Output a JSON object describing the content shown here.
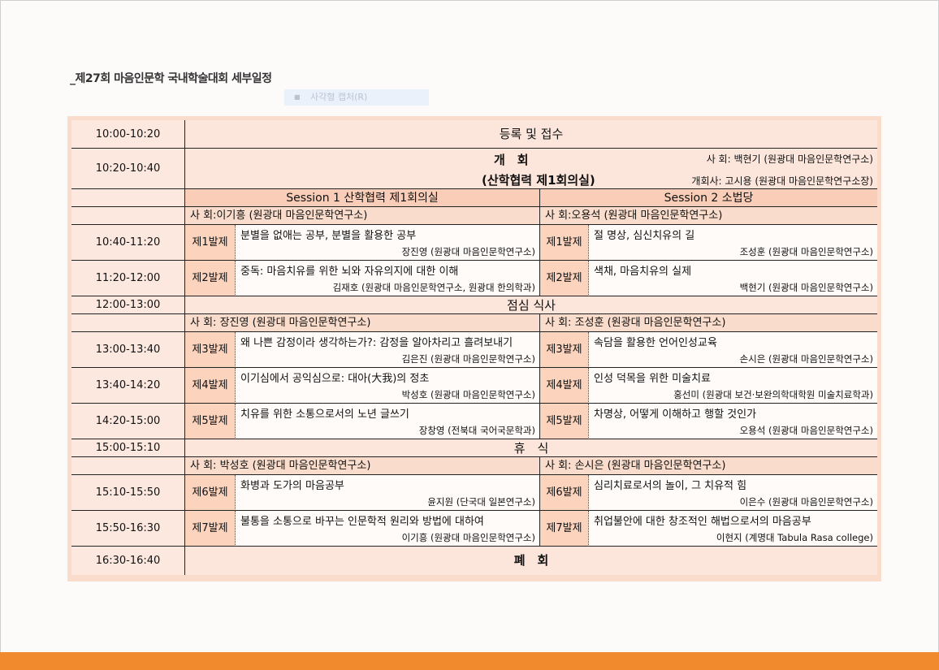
{
  "title": "_제27회 마음인문학 국내학술대회 세부일정",
  "capture_overlay": "사각형 캡처(R)",
  "colors": {
    "table_bg": "#f9dccb",
    "session_header": "#f9cdb7",
    "talk_label": "#fcd3bd",
    "bottom_bar": "#f08a2c"
  },
  "schedule": {
    "registration": {
      "time": "10:00-10:20",
      "label": "등록 및 접수"
    },
    "opening": {
      "time": "10:20-10:40",
      "title": "개　회",
      "venue": "(산학협력 제1회의실)",
      "moderator": "사 회: 백현기 (원광대 마음인문학연구소)",
      "opening_speech": "개회사: 고시용 (원광대 마음인문학연구소장)"
    },
    "sessions": [
      "Session 1 산학협력 제1회의실",
      "Session 2 소법당"
    ],
    "blocks": [
      {
        "moderators": [
          "사 회:이기흥 (원광대 마음인문학연구소)",
          "사 회:오용석 (원광대 마음인문학연구소)"
        ],
        "talks": [
          {
            "time": "10:40-11:20",
            "left": {
              "no": "제1발제",
              "title": "분별을 없애는 공부, 분별을 활용한 공부",
              "speaker": "장진영 (원광대 마음인문학연구소)"
            },
            "right": {
              "no": "제1발제",
              "title": "절 명상, 심신치유의 길",
              "speaker": "조성훈 (원광대 마음인문학연구소)"
            }
          },
          {
            "time": "11:20-12:00",
            "left": {
              "no": "제2발제",
              "title": "중독: 마음치유를 위한 뇌와 자유의지에 대한 이해",
              "speaker": "김재호 (원광대 마음인문학연구소, 원광대 한의학과)"
            },
            "right": {
              "no": "제2발제",
              "title": "색채, 마음치유의 실제",
              "speaker": "백현기 (원광대 마음인문학연구소)"
            }
          }
        ]
      },
      {
        "moderators": [
          "사 회: 장진영 (원광대 마음인문학연구소)",
          "사 회: 조성훈 (원광대 마음인문학연구소)"
        ],
        "talks": [
          {
            "time": "13:00-13:40",
            "left": {
              "no": "제3발제",
              "title": "왜 나쁜 감정이라 생각하는가?: 감정을 알아차리고 흘려보내기",
              "speaker": "김은진 (원광대 마음인문학연구소)"
            },
            "right": {
              "no": "제3발제",
              "title": "속담을 활용한 언어인성교육",
              "speaker": "손시은 (원광대 마음인문학연구소)"
            }
          },
          {
            "time": "13:40-14:20",
            "left": {
              "no": "제4발제",
              "title": "이기심에서 공익심으로: 대아(大我)의 정초",
              "speaker": "박성호 (원광대 마음인문학연구소)"
            },
            "right": {
              "no": "제4발제",
              "title": "인성 덕목을 위한 미술치료",
              "speaker": "홍선미 (원광대 보건·보완의학대학원 미술치료학과)"
            }
          },
          {
            "time": "14:20-15:00",
            "left": {
              "no": "제5발제",
              "title": "치유를 위한 소통으로서의 노년 글쓰기",
              "speaker": "장창영 (전북대 국어국문학과)"
            },
            "right": {
              "no": "제5발제",
              "title": "차명상, 어떻게 이해하고 행할 것인가",
              "speaker": "오용석 (원광대 마음인문학연구소)"
            }
          }
        ]
      },
      {
        "moderators": [
          "사 회: 박성호 (원광대 마음인문학연구소)",
          "사 회: 손시은 (원광대 마음인문학연구소)"
        ],
        "talks": [
          {
            "time": "15:10-15:50",
            "left": {
              "no": "제6발제",
              "title": "화병과 도가의 마음공부",
              "speaker": "윤지원 (단국대 일본연구소)"
            },
            "right": {
              "no": "제6발제",
              "title": "심리치료로서의 놀이, 그 치유적 힘",
              "speaker": "이은수 (원광대 마음인문학연구소)"
            }
          },
          {
            "time": "15:50-16:30",
            "left": {
              "no": "제7발제",
              "title": "불통을 소통으로 바꾸는 인문학적 원리와 방법에 대하여",
              "speaker": "이기흥 (원광대 마음인문학연구소)"
            },
            "right": {
              "no": "제7발제",
              "title": "취업불안에 대한 창조적인 해법으로서의 마음공부",
              "speaker": "이현지 (계명대 Tabula Rasa college)"
            }
          }
        ]
      }
    ],
    "lunch": {
      "time": "12:00-13:00",
      "label": "점심 식사"
    },
    "break": {
      "time": "15:00-15:10",
      "label": "휴　식"
    },
    "closing": {
      "time": "16:30-16:40",
      "label": "폐　회"
    }
  }
}
